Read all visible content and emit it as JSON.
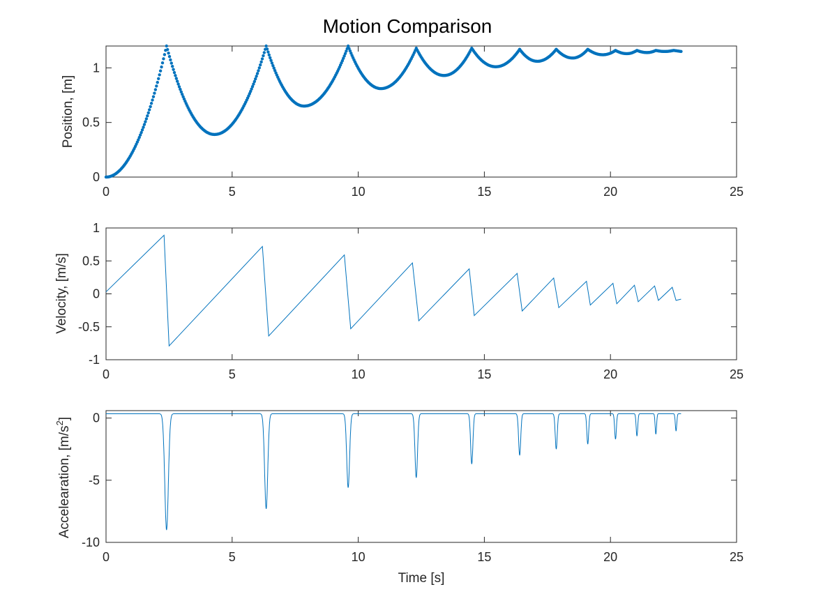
{
  "figure": {
    "title": "Motion Comparison",
    "line_color": "#0072BD",
    "axes_color": "#262626"
  },
  "chart_data": [
    {
      "type": "scatter",
      "title": "Motion Comparison",
      "xlabel": "",
      "ylabel": "Position, [m]",
      "xlim": [
        0,
        25
      ],
      "ylim": [
        0,
        1.2
      ],
      "xticks": [
        0,
        5,
        10,
        15,
        20,
        25
      ],
      "yticks": [
        0,
        0.5,
        1
      ],
      "xtick_labels": [
        "0",
        "5",
        "10",
        "15",
        "20",
        "25"
      ],
      "ytick_labels": [
        "0",
        "0.5",
        "1"
      ],
      "grid": false,
      "marker": "dot",
      "peaks": [
        [
          2.4,
          1.2
        ],
        [
          6.35,
          1.2
        ],
        [
          9.6,
          1.2
        ],
        [
          12.3,
          1.18
        ],
        [
          14.5,
          1.18
        ],
        [
          16.4,
          1.17
        ],
        [
          17.85,
          1.17
        ],
        [
          19.1,
          1.17
        ],
        [
          20.2,
          1.16
        ],
        [
          21.05,
          1.16
        ],
        [
          21.8,
          1.16
        ],
        [
          22.5,
          1.16
        ]
      ],
      "valleys": [
        [
          0.0,
          0.0
        ],
        [
          4.3,
          0.39
        ],
        [
          7.85,
          0.65
        ],
        [
          10.9,
          0.81
        ],
        [
          13.4,
          0.93
        ],
        [
          15.45,
          1.01
        ],
        [
          17.1,
          1.06
        ],
        [
          18.5,
          1.09
        ],
        [
          19.7,
          1.12
        ],
        [
          20.65,
          1.13
        ],
        [
          21.45,
          1.14
        ],
        [
          22.15,
          1.15
        ]
      ],
      "end": [
        22.8,
        1.15
      ]
    },
    {
      "type": "line",
      "xlabel": "",
      "ylabel": "Velocity, [m/s]",
      "xlim": [
        0,
        25
      ],
      "ylim": [
        -1,
        1
      ],
      "xticks": [
        0,
        5,
        10,
        15,
        20,
        25
      ],
      "yticks": [
        -1,
        -0.5,
        0,
        0.5,
        1
      ],
      "xtick_labels": [
        "0",
        "5",
        "10",
        "15",
        "20",
        "25"
      ],
      "ytick_labels": [
        "-1",
        "-0.5",
        "0",
        "0.5",
        "1"
      ],
      "grid": false,
      "series": [
        {
          "x": [
            0.0,
            2.3,
            2.5,
            6.2,
            6.45,
            9.45,
            9.7,
            12.15,
            12.4,
            14.4,
            14.6,
            16.3,
            16.5,
            17.75,
            17.95,
            19.05,
            19.2,
            20.1,
            20.25,
            20.95,
            21.1,
            21.75,
            21.9,
            22.45,
            22.6,
            22.8
          ],
          "y": [
            0.03,
            0.89,
            -0.79,
            0.72,
            -0.64,
            0.59,
            -0.53,
            0.47,
            -0.41,
            0.38,
            -0.33,
            0.31,
            -0.26,
            0.24,
            -0.21,
            0.19,
            -0.17,
            0.16,
            -0.15,
            0.13,
            -0.12,
            0.12,
            -0.1,
            0.1,
            -0.1,
            -0.08
          ]
        }
      ]
    },
    {
      "type": "line",
      "xlabel": "Time [s]",
      "ylabel": "Accelearation, [m/s²]",
      "ylabel_base": "Accelearation, [m/s",
      "ylabel_sup": "2",
      "ylabel_close": "]",
      "xlim": [
        0,
        25
      ],
      "ylim": [
        -10,
        0.6
      ],
      "xticks": [
        0,
        5,
        10,
        15,
        20,
        25
      ],
      "yticks": [
        -10,
        -5,
        0
      ],
      "xtick_labels": [
        "0",
        "5",
        "10",
        "15",
        "20",
        "25"
      ],
      "ytick_labels": [
        "-10",
        "-5",
        "0"
      ],
      "grid": false,
      "baseline": 0.35,
      "spikes": [
        {
          "t": 2.4,
          "min": -9.0,
          "w": 0.25
        },
        {
          "t": 6.35,
          "min": -7.3,
          "w": 0.22
        },
        {
          "t": 9.6,
          "min": -5.6,
          "w": 0.2
        },
        {
          "t": 12.3,
          "min": -4.8,
          "w": 0.18
        },
        {
          "t": 14.5,
          "min": -3.7,
          "w": 0.16
        },
        {
          "t": 16.4,
          "min": -3.0,
          "w": 0.15
        },
        {
          "t": 17.85,
          "min": -2.5,
          "w": 0.14
        },
        {
          "t": 19.1,
          "min": -2.1,
          "w": 0.13
        },
        {
          "t": 20.2,
          "min": -1.7,
          "w": 0.12
        },
        {
          "t": 21.05,
          "min": -1.45,
          "w": 0.11
        },
        {
          "t": 21.8,
          "min": -1.3,
          "w": 0.1
        },
        {
          "t": 22.6,
          "min": -1.05,
          "w": 0.1
        }
      ],
      "end_t": 22.8
    }
  ]
}
